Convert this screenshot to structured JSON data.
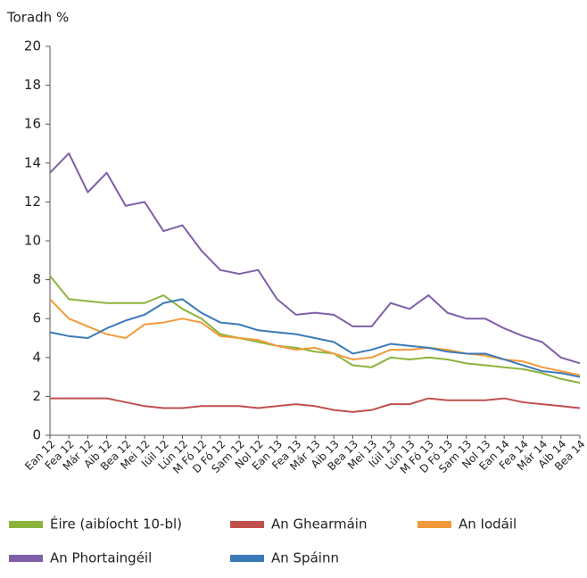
{
  "chart_data": {
    "type": "line",
    "y_label": "Toradh %",
    "categories": [
      "Ean 12",
      "Fea 12",
      "Már 12",
      "Aib 12",
      "Bea 12",
      "Mei 12",
      "Iúil 12",
      "Lún 12",
      "M Fó 12",
      "D Fó 12",
      "Sam 12",
      "Nol 12",
      "Ean 13",
      "Fea 13",
      "Már 13",
      "Aib 13",
      "Bea 13",
      "Mei 13",
      "Iúil 13",
      "Lún 13",
      "M Fó 13",
      "D Fó 13",
      "Sam 13",
      "Nol 13",
      "Ean 14",
      "Fea 14",
      "Már 14",
      "Aib 14",
      "Bea 14"
    ],
    "series": [
      {
        "name": "Éire (aibíocht 10-bl)",
        "color": "#8cb43c",
        "values": [
          8.2,
          7.0,
          6.9,
          6.8,
          6.8,
          6.8,
          7.2,
          6.5,
          6.0,
          5.2,
          5.0,
          4.8,
          4.6,
          4.5,
          4.3,
          4.2,
          3.6,
          3.5,
          4.0,
          3.9,
          4.0,
          3.9,
          3.7,
          3.6,
          3.5,
          3.4,
          3.2,
          2.9,
          2.7
        ]
      },
      {
        "name": "An Ghearmáin",
        "color": "#c0504d",
        "values": [
          1.9,
          1.9,
          1.9,
          1.9,
          1.7,
          1.5,
          1.4,
          1.4,
          1.5,
          1.5,
          1.5,
          1.4,
          1.5,
          1.6,
          1.5,
          1.3,
          1.2,
          1.3,
          1.6,
          1.6,
          1.9,
          1.8,
          1.8,
          1.8,
          1.9,
          1.7,
          1.6,
          1.5,
          1.4
        ]
      },
      {
        "name": "An Iodáil",
        "color": "#f29a3a",
        "values": [
          7.0,
          6.0,
          5.6,
          5.2,
          5.0,
          5.7,
          5.8,
          6.0,
          5.8,
          5.1,
          5.0,
          4.9,
          4.6,
          4.4,
          4.5,
          4.2,
          3.9,
          4.0,
          4.4,
          4.4,
          4.5,
          4.4,
          4.2,
          4.1,
          3.9,
          3.8,
          3.5,
          3.3,
          3.1
        ]
      },
      {
        "name": "An Phortaingéil",
        "color": "#7f5fa8",
        "values": [
          13.5,
          14.5,
          12.5,
          13.5,
          11.8,
          12.0,
          10.5,
          10.8,
          9.5,
          8.5,
          8.3,
          8.5,
          7.0,
          6.2,
          6.3,
          6.2,
          5.6,
          5.6,
          6.8,
          6.5,
          7.2,
          6.3,
          6.0,
          6.0,
          5.5,
          5.1,
          4.8,
          4.0,
          3.7
        ]
      },
      {
        "name": "An Spáinn",
        "color": "#3a7ab8",
        "values": [
          5.3,
          5.1,
          5.0,
          5.5,
          5.9,
          6.2,
          6.8,
          7.0,
          6.3,
          5.8,
          5.7,
          5.4,
          5.3,
          5.2,
          5.0,
          4.8,
          4.2,
          4.4,
          4.7,
          4.6,
          4.5,
          4.3,
          4.2,
          4.2,
          3.9,
          3.6,
          3.3,
          3.2,
          3.0
        ]
      }
    ],
    "ylim": [
      0,
      20
    ],
    "yticks": [
      0,
      2,
      4,
      6,
      8,
      10,
      12,
      14,
      16,
      18,
      20
    ],
    "grid": false
  }
}
